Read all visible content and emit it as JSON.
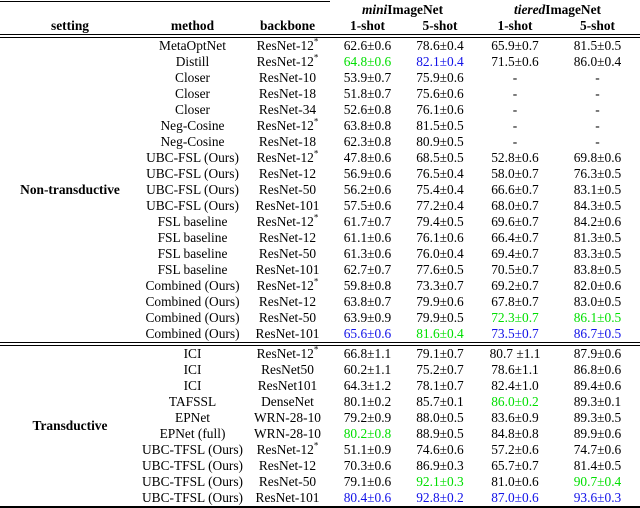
{
  "colors": {
    "highlight_green": "#00DF00",
    "highlight_blue": "#1212E8",
    "text": "#000000",
    "rule": "#000000"
  },
  "table": {
    "column_headers": {
      "setting": "setting",
      "method": "method",
      "backbone": "backbone",
      "shot1": "1-shot",
      "shot5": "5-shot"
    },
    "group_headers": [
      {
        "italic": "mini",
        "rest": "ImageNet"
      },
      {
        "italic": "tiered",
        "rest": "ImageNet"
      }
    ],
    "sections": [
      {
        "setting": "Non-transductive",
        "rows": [
          {
            "method": "MetaOptNet",
            "backbone": "ResNet-12*",
            "scores": [
              {
                "v": "62.6±0.6"
              },
              {
                "v": "78.6±0.4"
              },
              {
                "v": "65.9±0.7"
              },
              {
                "v": "81.5±0.5"
              }
            ]
          },
          {
            "method": "Distill",
            "backbone": "ResNet-12*",
            "scores": [
              {
                "v": "64.8±0.6",
                "c": "green"
              },
              {
                "v": "82.1±0.4",
                "c": "blue"
              },
              {
                "v": "71.5±0.6"
              },
              {
                "v": "86.0±0.4"
              }
            ]
          },
          {
            "method": "Closer",
            "backbone": "ResNet-10",
            "scores": [
              {
                "v": "53.9±0.7"
              },
              {
                "v": "75.9±0.6"
              },
              {
                "v": "-"
              },
              {
                "v": "-"
              }
            ]
          },
          {
            "method": "Closer",
            "backbone": "ResNet-18",
            "scores": [
              {
                "v": "51.8±0.7"
              },
              {
                "v": "75.6±0.6"
              },
              {
                "v": "-"
              },
              {
                "v": "-"
              }
            ]
          },
          {
            "method": "Closer",
            "backbone": "ResNet-34",
            "scores": [
              {
                "v": "52.6±0.8"
              },
              {
                "v": "76.1±0.6"
              },
              {
                "v": "-"
              },
              {
                "v": "-"
              }
            ]
          },
          {
            "method": "Neg-Cosine",
            "backbone": "ResNet-12*",
            "scores": [
              {
                "v": "63.8±0.8"
              },
              {
                "v": "81.5±0.5"
              },
              {
                "v": "-"
              },
              {
                "v": "-"
              }
            ]
          },
          {
            "method": "Neg-Cosine",
            "backbone": "ResNet-18",
            "scores": [
              {
                "v": "62.3±0.8"
              },
              {
                "v": "80.9±0.5"
              },
              {
                "v": "-"
              },
              {
                "v": "-"
              }
            ]
          },
          {
            "method": "UBC-FSL (Ours)",
            "backbone": "ResNet-12*",
            "scores": [
              {
                "v": "47.8±0.6"
              },
              {
                "v": "68.5±0.5"
              },
              {
                "v": "52.8±0.6"
              },
              {
                "v": "69.8±0.6"
              }
            ]
          },
          {
            "method": "UBC-FSL (Ours)",
            "backbone": "ResNet-12",
            "scores": [
              {
                "v": "56.9±0.6"
              },
              {
                "v": "76.5±0.4"
              },
              {
                "v": "58.0±0.7"
              },
              {
                "v": "76.3±0.5"
              }
            ]
          },
          {
            "method": "UBC-FSL (Ours)",
            "backbone": "ResNet-50",
            "scores": [
              {
                "v": "56.2±0.6"
              },
              {
                "v": "75.4±0.4"
              },
              {
                "v": "66.6±0.7"
              },
              {
                "v": "83.1±0.5"
              }
            ]
          },
          {
            "method": "UBC-FSL (Ours)",
            "backbone": "ResNet-101",
            "scores": [
              {
                "v": "57.5±0.6"
              },
              {
                "v": "77.2±0.4"
              },
              {
                "v": "68.0±0.7"
              },
              {
                "v": "84.3±0.5"
              }
            ]
          },
          {
            "method": "FSL baseline",
            "backbone": "ResNet-12*",
            "scores": [
              {
                "v": "61.7±0.7"
              },
              {
                "v": "79.4±0.5"
              },
              {
                "v": "69.6±0.7"
              },
              {
                "v": "84.2±0.6"
              }
            ]
          },
          {
            "method": "FSL baseline",
            "backbone": "ResNet-12",
            "scores": [
              {
                "v": "61.1±0.6"
              },
              {
                "v": "76.1±0.6"
              },
              {
                "v": "66.4±0.7"
              },
              {
                "v": "81.3±0.5"
              }
            ]
          },
          {
            "method": "FSL baseline",
            "backbone": "ResNet-50",
            "scores": [
              {
                "v": "61.3±0.6"
              },
              {
                "v": "76.0±0.4"
              },
              {
                "v": "69.4±0.7"
              },
              {
                "v": "83.3±0.5"
              }
            ]
          },
          {
            "method": "FSL baseline",
            "backbone": "ResNet-101",
            "scores": [
              {
                "v": "62.7±0.7"
              },
              {
                "v": "77.6±0.5"
              },
              {
                "v": "70.5±0.7"
              },
              {
                "v": "83.8±0.5"
              }
            ]
          },
          {
            "method": "Combined (Ours)",
            "backbone": "ResNet-12*",
            "scores": [
              {
                "v": "59.8±0.8"
              },
              {
                "v": "73.3±0.7"
              },
              {
                "v": "69.2±0.7"
              },
              {
                "v": "82.0±0.6"
              }
            ]
          },
          {
            "method": "Combined (Ours)",
            "backbone": "ResNet-12",
            "scores": [
              {
                "v": "63.8±0.7"
              },
              {
                "v": "79.9±0.6"
              },
              {
                "v": "67.8±0.7"
              },
              {
                "v": "83.0±0.5"
              }
            ]
          },
          {
            "method": "Combined (Ours)",
            "backbone": "ResNet-50",
            "scores": [
              {
                "v": "63.9±0.9"
              },
              {
                "v": "79.9±0.5"
              },
              {
                "v": "72.3±0.7",
                "c": "green"
              },
              {
                "v": "86.1±0.5",
                "c": "green"
              }
            ]
          },
          {
            "method": "Combined (Ours)",
            "backbone": "ResNet-101",
            "scores": [
              {
                "v": "65.6±0.6",
                "c": "blue"
              },
              {
                "v": "81.6±0.4",
                "c": "green"
              },
              {
                "v": "73.5±0.7",
                "c": "blue"
              },
              {
                "v": "86.7±0.5",
                "c": "blue"
              }
            ]
          }
        ]
      },
      {
        "setting": "Transductive",
        "rows": [
          {
            "method": "ICI",
            "backbone": "ResNet-12*",
            "scores": [
              {
                "v": "66.8±1.1"
              },
              {
                "v": "79.1±0.7"
              },
              {
                "v": "80.7 ±1.1"
              },
              {
                "v": "87.9±0.6"
              }
            ]
          },
          {
            "method": "ICI",
            "backbone": "ResNet50",
            "scores": [
              {
                "v": "60.2±1.1"
              },
              {
                "v": "75.2±0.7"
              },
              {
                "v": "78.6±1.1"
              },
              {
                "v": "86.8±0.6"
              }
            ]
          },
          {
            "method": "ICI",
            "backbone": "ResNet101",
            "scores": [
              {
                "v": "64.3±1.2"
              },
              {
                "v": "78.1±0.7"
              },
              {
                "v": "82.4±1.0"
              },
              {
                "v": "89.4±0.6"
              }
            ]
          },
          {
            "method": "TAFSSL",
            "backbone": "DenseNet",
            "scores": [
              {
                "v": "80.1±0.2"
              },
              {
                "v": "85.7±0.1"
              },
              {
                "v": "86.0±0.2",
                "c": "green"
              },
              {
                "v": "89.3±0.1"
              }
            ]
          },
          {
            "method": "EPNet",
            "backbone": "WRN-28-10",
            "scores": [
              {
                "v": "79.2±0.9"
              },
              {
                "v": "88.0±0.5"
              },
              {
                "v": "83.6±0.9"
              },
              {
                "v": "89.3±0.5"
              }
            ]
          },
          {
            "method": "EPNet (full)",
            "backbone": "WRN-28-10",
            "scores": [
              {
                "v": "80.2±0.8",
                "c": "green"
              },
              {
                "v": "88.9±0.5"
              },
              {
                "v": "84.8±0.8"
              },
              {
                "v": "89.9±0.6"
              }
            ]
          },
          {
            "method": "UBC-TFSL (Ours)",
            "backbone": "ResNet-12*",
            "scores": [
              {
                "v": "51.1±0.9"
              },
              {
                "v": "74.6±0.6"
              },
              {
                "v": "57.2±0.6"
              },
              {
                "v": "74.7±0.6"
              }
            ]
          },
          {
            "method": "UBC-TFSL (Ours)",
            "backbone": "ResNet-12",
            "scores": [
              {
                "v": "70.3±0.6"
              },
              {
                "v": "86.9±0.3"
              },
              {
                "v": "65.7±0.7"
              },
              {
                "v": "81.4±0.5"
              }
            ]
          },
          {
            "method": "UBC-TFSL (Ours)",
            "backbone": "ResNet-50",
            "scores": [
              {
                "v": "79.1±0.6"
              },
              {
                "v": "92.1±0.3",
                "c": "green"
              },
              {
                "v": "81.0±0.6"
              },
              {
                "v": "90.7±0.4",
                "c": "green"
              }
            ]
          },
          {
            "method": "UBC-TFSL (Ours)",
            "backbone": "ResNet-101",
            "scores": [
              {
                "v": "80.4±0.6",
                "c": "blue"
              },
              {
                "v": "92.8±0.2",
                "c": "blue"
              },
              {
                "v": "87.0±0.6",
                "c": "blue"
              },
              {
                "v": "93.6±0.3",
                "c": "blue"
              }
            ]
          }
        ]
      }
    ]
  }
}
